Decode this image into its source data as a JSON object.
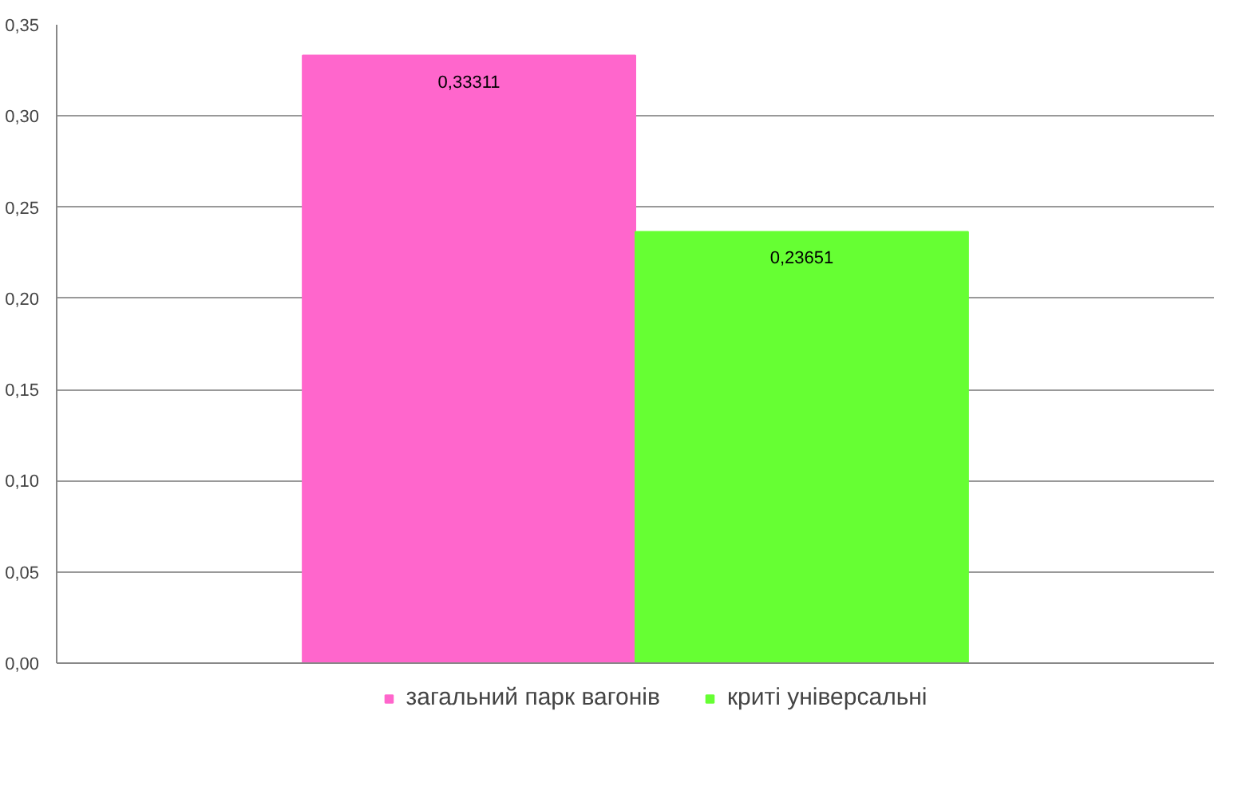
{
  "chart_data": {
    "type": "bar",
    "categories": [
      null
    ],
    "series": [
      {
        "name": "загальний парк вагонів",
        "color": "#ff66cc",
        "values": [
          0.33311
        ],
        "value_labels": [
          "0,33311"
        ]
      },
      {
        "name": "криті універсальні",
        "color": "#66ff33",
        "values": [
          0.23651
        ],
        "value_labels": [
          "0,23651"
        ]
      }
    ],
    "ylim": [
      0,
      0.35
    ],
    "yticks": [
      {
        "value": 0,
        "label": "0,00"
      },
      {
        "value": 0.05,
        "label": "0,05"
      },
      {
        "value": 0.1,
        "label": "0,10"
      },
      {
        "value": 0.15,
        "label": "0,15"
      },
      {
        "value": 0.2,
        "label": "0,20"
      },
      {
        "value": 0.25,
        "label": "0,25"
      },
      {
        "value": 0.3,
        "label": "0,30"
      },
      {
        "value": 0.35,
        "label": "0,35"
      }
    ],
    "grid": "y",
    "legend": "bottom"
  }
}
